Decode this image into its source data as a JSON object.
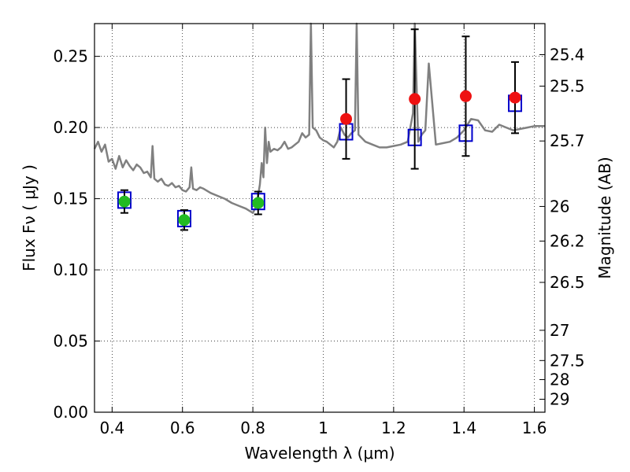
{
  "chart_data": {
    "type": "scatter",
    "xlabel": "Wavelength  λ (μm)",
    "ylabel": "Flux  Fν  ( μJy )",
    "ylabel_right": "Magnitude (AB)",
    "xlim": [
      0.35,
      1.63
    ],
    "ylim": [
      0.0,
      0.273
    ],
    "grid": true,
    "x_ticks": [
      {
        "value": 0.4,
        "label": "0.4"
      },
      {
        "value": 0.6,
        "label": "0.6"
      },
      {
        "value": 0.8,
        "label": "0.8"
      },
      {
        "value": 1.0,
        "label": "1"
      },
      {
        "value": 1.2,
        "label": "1.2"
      },
      {
        "value": 1.4,
        "label": "1.4"
      },
      {
        "value": 1.6,
        "label": "1.6"
      }
    ],
    "y_ticks": [
      {
        "value": 0.0,
        "label": "0.00"
      },
      {
        "value": 0.05,
        "label": "0.05"
      },
      {
        "value": 0.1,
        "label": "0.10"
      },
      {
        "value": 0.15,
        "label": "0.15"
      },
      {
        "value": 0.2,
        "label": "0.20"
      },
      {
        "value": 0.25,
        "label": "0.25"
      }
    ],
    "magnitude_ticks": [
      {
        "value": 25.4,
        "label": "25.4"
      },
      {
        "value": 25.5,
        "label": "25.5"
      },
      {
        "value": 25.7,
        "label": "25.7"
      },
      {
        "value": 26.0,
        "label": "26"
      },
      {
        "value": 26.2,
        "label": "26.2"
      },
      {
        "value": 26.5,
        "label": "26.5"
      },
      {
        "value": 27.0,
        "label": "27"
      },
      {
        "value": 27.5,
        "label": "27.5"
      },
      {
        "value": 28.0,
        "label": "28"
      },
      {
        "value": 29.0,
        "label": "29"
      }
    ],
    "series": [
      {
        "kind": "line",
        "color": "#808080",
        "x": [
          0.35,
          0.36,
          0.37,
          0.38,
          0.39,
          0.4,
          0.41,
          0.42,
          0.43,
          0.44,
          0.45,
          0.46,
          0.47,
          0.48,
          0.49,
          0.5,
          0.51,
          0.515,
          0.52,
          0.53,
          0.54,
          0.55,
          0.56,
          0.57,
          0.58,
          0.59,
          0.6,
          0.61,
          0.62,
          0.625,
          0.63,
          0.64,
          0.65,
          0.66,
          0.68,
          0.7,
          0.72,
          0.74,
          0.76,
          0.78,
          0.8,
          0.81,
          0.82,
          0.825,
          0.83,
          0.835,
          0.84,
          0.845,
          0.85,
          0.86,
          0.87,
          0.88,
          0.89,
          0.9,
          0.91,
          0.92,
          0.93,
          0.94,
          0.95,
          0.96,
          0.965,
          0.97,
          0.98,
          0.99,
          1.0,
          1.01,
          1.02,
          1.03,
          1.04,
          1.05,
          1.06,
          1.07,
          1.08,
          1.09,
          1.095,
          1.1,
          1.12,
          1.14,
          1.16,
          1.18,
          1.2,
          1.22,
          1.24,
          1.255,
          1.26,
          1.27,
          1.28,
          1.29,
          1.3,
          1.32,
          1.34,
          1.36,
          1.38,
          1.4,
          1.42,
          1.44,
          1.46,
          1.48,
          1.5,
          1.52,
          1.54,
          1.56,
          1.58,
          1.6,
          1.63
        ],
        "values": [
          0.185,
          0.19,
          0.183,
          0.188,
          0.176,
          0.178,
          0.171,
          0.18,
          0.172,
          0.177,
          0.173,
          0.17,
          0.174,
          0.172,
          0.168,
          0.169,
          0.165,
          0.187,
          0.164,
          0.162,
          0.164,
          0.16,
          0.159,
          0.161,
          0.158,
          0.159,
          0.156,
          0.155,
          0.158,
          0.172,
          0.157,
          0.156,
          0.158,
          0.157,
          0.154,
          0.152,
          0.15,
          0.147,
          0.145,
          0.143,
          0.14,
          0.145,
          0.16,
          0.175,
          0.165,
          0.2,
          0.175,
          0.19,
          0.183,
          0.185,
          0.184,
          0.186,
          0.19,
          0.185,
          0.186,
          0.188,
          0.19,
          0.196,
          0.193,
          0.195,
          0.273,
          0.2,
          0.198,
          0.193,
          0.191,
          0.19,
          0.188,
          0.186,
          0.19,
          0.2,
          0.195,
          0.193,
          0.196,
          0.198,
          0.273,
          0.195,
          0.19,
          0.188,
          0.186,
          0.186,
          0.187,
          0.188,
          0.19,
          0.21,
          0.273,
          0.19,
          0.195,
          0.198,
          0.245,
          0.188,
          0.189,
          0.19,
          0.193,
          0.198,
          0.206,
          0.205,
          0.198,
          0.197,
          0.202,
          0.2,
          0.198,
          0.199,
          0.2,
          0.201,
          0.201
        ]
      },
      {
        "kind": "open-square",
        "color": "#0000cc",
        "x": [
          0.435,
          0.605,
          0.815,
          1.065,
          1.26,
          1.405,
          1.545
        ],
        "values": [
          0.149,
          0.136,
          0.148,
          0.197,
          0.193,
          0.196,
          0.217
        ]
      },
      {
        "kind": "points-with-errors",
        "color": "#22bb22",
        "x": [
          0.435,
          0.605,
          0.815
        ],
        "values": [
          0.148,
          0.135,
          0.147
        ],
        "errors": [
          0.008,
          0.007,
          0.008
        ]
      },
      {
        "kind": "points-with-errors",
        "color": "#ee1111",
        "x": [
          1.065,
          1.26,
          1.405,
          1.545
        ],
        "values": [
          0.206,
          0.22,
          0.222,
          0.221
        ],
        "errors": [
          0.028,
          0.049,
          0.042,
          0.025
        ]
      }
    ]
  }
}
